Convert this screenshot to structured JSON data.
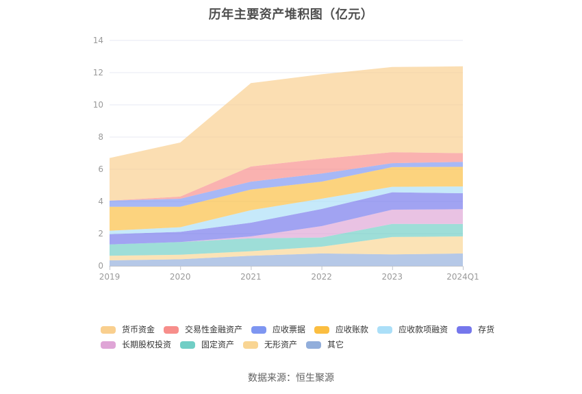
{
  "title": {
    "text": "历年主要资产堆积图（亿元）"
  },
  "footer": {
    "source": "数据来源：恒生聚源"
  },
  "chart_data": {
    "type": "area",
    "stacked": true,
    "title": "历年主要资产堆积图（亿元）",
    "xlabel": "",
    "ylabel": "",
    "categories": [
      "2019",
      "2020",
      "2021",
      "2022",
      "2023",
      "2024Q1"
    ],
    "ylim": [
      0,
      14
    ],
    "yticks": [
      0,
      2,
      4,
      6,
      8,
      10,
      12,
      14
    ],
    "grid": true,
    "legend_position": "bottom",
    "stacking_note": "stacked bottom-to-top in reverse series order: 其它 at bottom, 货币资金 on top",
    "totals": [
      6.7,
      7.66,
      11.35,
      11.9,
      12.35,
      12.39
    ],
    "series": [
      {
        "id": "monetary-funds",
        "name": "货币资金",
        "color": "#F9CF8E",
        "values": [
          2.65,
          3.36,
          5.18,
          5.25,
          5.29,
          5.39
        ]
      },
      {
        "id": "trading-financial-assets",
        "name": "交易性金融资产",
        "color": "#F78E8B",
        "values": [
          0.0,
          0.13,
          0.94,
          0.92,
          0.68,
          0.54
        ]
      },
      {
        "id": "notes-receivable",
        "name": "应收票据",
        "color": "#7E96F1",
        "values": [
          0.38,
          0.5,
          0.49,
          0.5,
          0.25,
          0.31
        ]
      },
      {
        "id": "accounts-receivable",
        "name": "应收账款",
        "color": "#FBBE41",
        "values": [
          1.49,
          1.27,
          1.28,
          1.06,
          1.22,
          1.22
        ]
      },
      {
        "id": "receivables-financing",
        "name": "应收款项融资",
        "color": "#ABDFF8",
        "values": [
          0.21,
          0.29,
          0.78,
          0.64,
          0.34,
          0.42
        ]
      },
      {
        "id": "inventory",
        "name": "存货",
        "color": "#7577EC",
        "values": [
          0.64,
          0.63,
          0.85,
          1.06,
          1.08,
          0.99
        ]
      },
      {
        "id": "long-term-equity-investment",
        "name": "长期股权投资",
        "color": "#DFA5D6",
        "values": [
          0.0,
          0.0,
          0.12,
          0.71,
          0.88,
          0.92
        ]
      },
      {
        "id": "fixed-assets",
        "name": "固定资产",
        "color": "#70CEC5",
        "values": [
          0.7,
          0.79,
          0.8,
          0.57,
          0.82,
          0.77
        ]
      },
      {
        "id": "intangible-assets",
        "name": "无形资产",
        "color": "#F9D593",
        "values": [
          0.29,
          0.28,
          0.28,
          0.42,
          1.08,
          1.06
        ]
      },
      {
        "id": "others",
        "name": "其它",
        "color": "#92AEDB",
        "values": [
          0.34,
          0.41,
          0.63,
          0.77,
          0.71,
          0.77
        ]
      }
    ],
    "colors": {
      "grid_line": "#E7EAF3",
      "axis_line": "#BFC3CC",
      "axis_label": "#999999",
      "title_text": "#4d4d4d",
      "legend_text": "#333333",
      "source_text": "#606060"
    }
  }
}
